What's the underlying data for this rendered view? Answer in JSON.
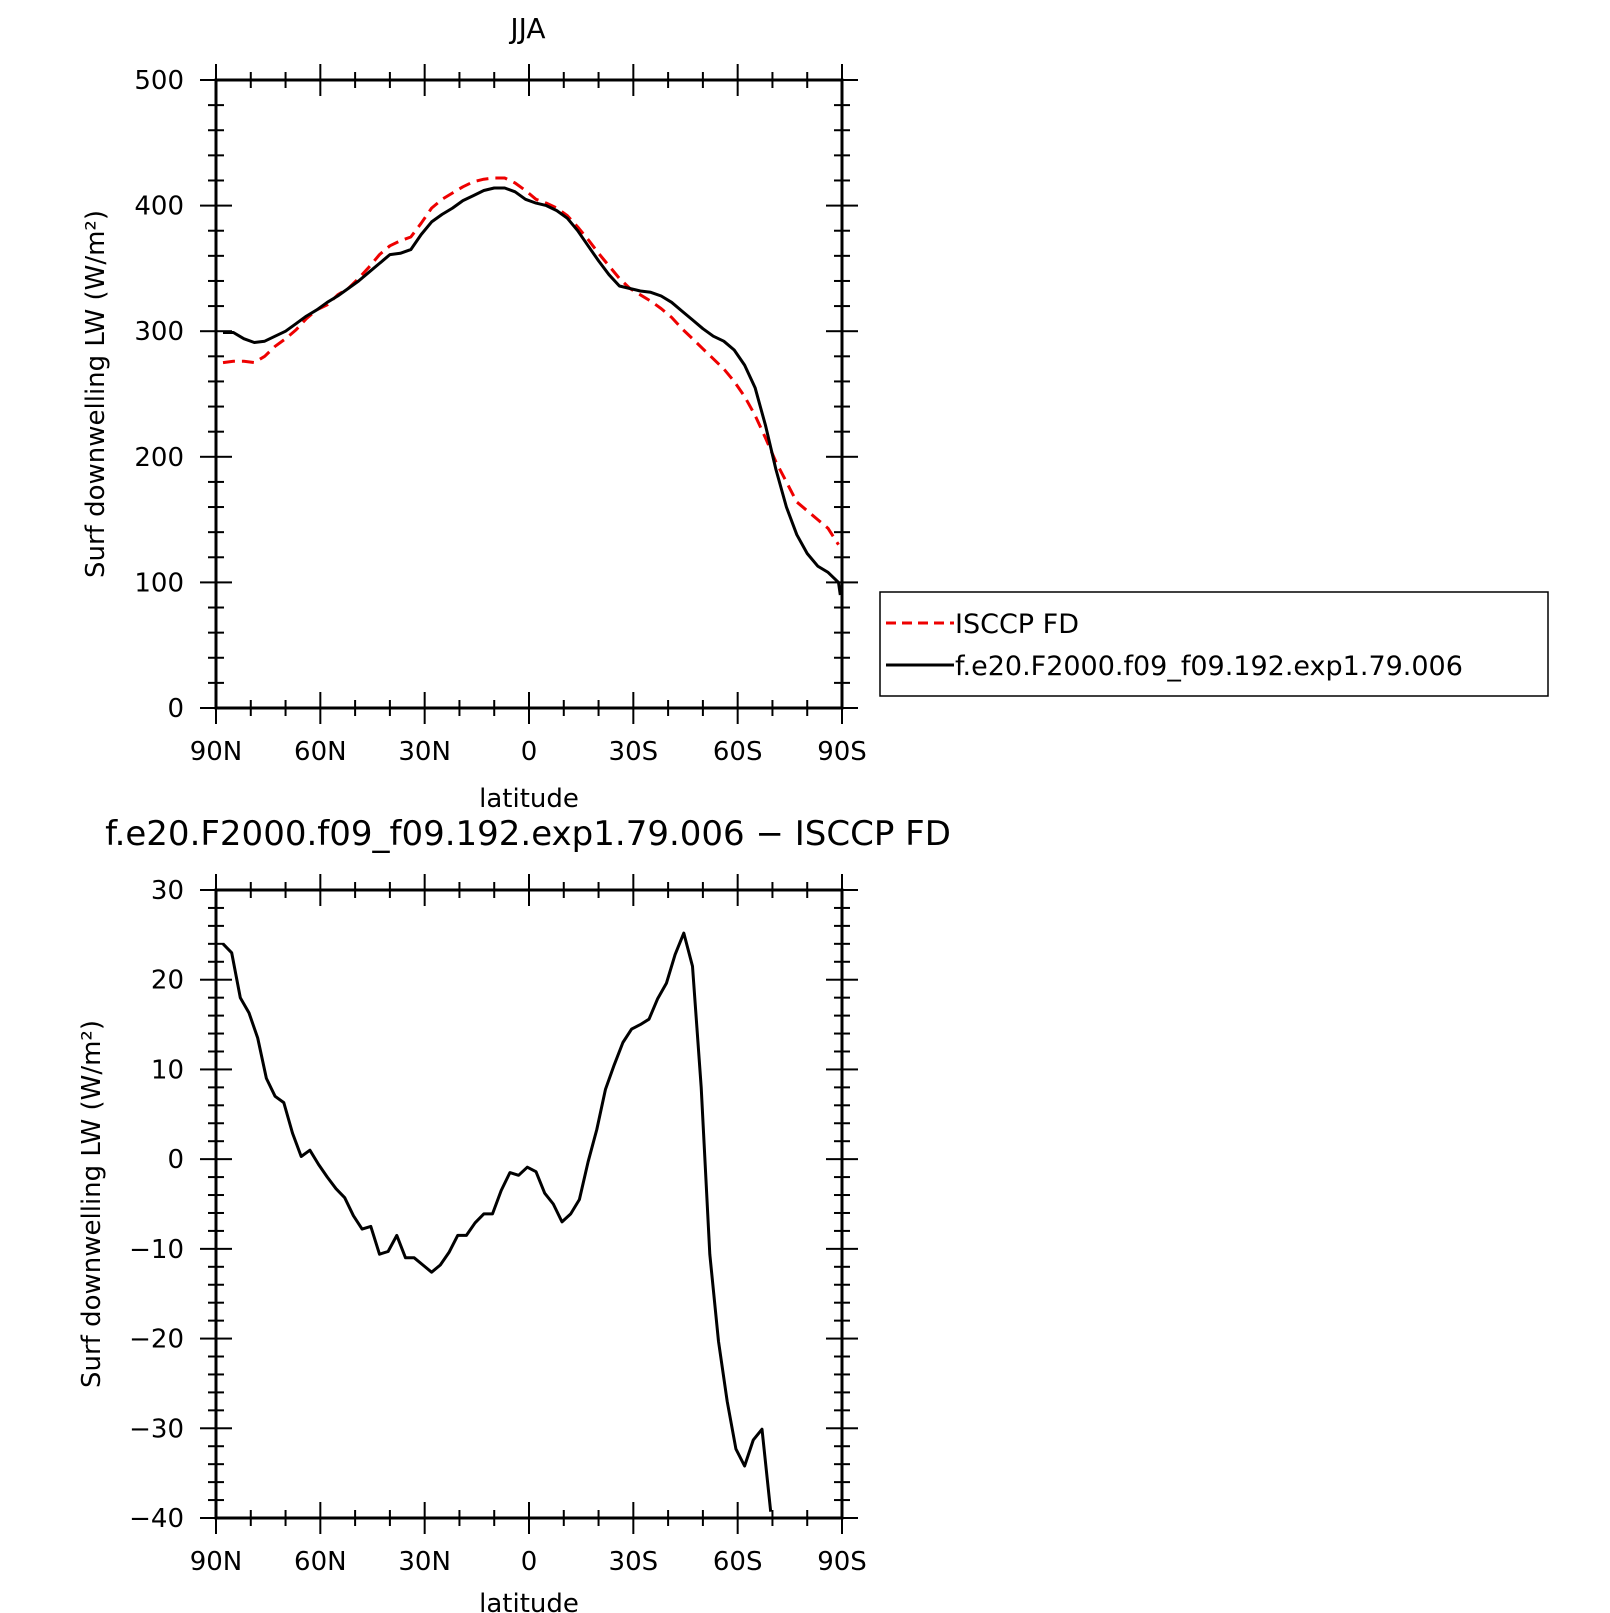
{
  "chart_data": [
    {
      "type": "line",
      "title": "JJA",
      "xlabel": "latitude",
      "ylabel": "Surf downwelling LW (W/m²)",
      "xlim": [
        90,
        -90
      ],
      "ylim": [
        0,
        500
      ],
      "xticks": [
        {
          "value": 90,
          "label": "90N"
        },
        {
          "value": 60,
          "label": "60N"
        },
        {
          "value": 30,
          "label": "30N"
        },
        {
          "value": 0,
          "label": "0"
        },
        {
          "value": -30,
          "label": "30S"
        },
        {
          "value": -60,
          "label": "60S"
        },
        {
          "value": -90,
          "label": "90S"
        }
      ],
      "yticks": [
        {
          "value": 0,
          "label": "0"
        },
        {
          "value": 100,
          "label": "100"
        },
        {
          "value": 200,
          "label": "200"
        },
        {
          "value": 300,
          "label": "300"
        },
        {
          "value": 400,
          "label": "400"
        },
        {
          "value": 500,
          "label": "500"
        }
      ],
      "grid": false,
      "legend": {
        "placement": "outside-right",
        "entries": [
          {
            "label": "ISCCP FD",
            "color": "#ee0000",
            "style": "dashed"
          },
          {
            "label": "f.e20.F2000.f09_f09.192.exp1.79.006",
            "color": "#000000",
            "style": "solid"
          }
        ]
      },
      "series": [
        {
          "name": "ISCCP FD",
          "color": "#ee0000",
          "dash": true,
          "points": [
            [
              88,
              275
            ],
            [
              85,
              276
            ],
            [
              82,
              276
            ],
            [
              79,
              275
            ],
            [
              76,
              280
            ],
            [
              73,
              288
            ],
            [
              70,
              294
            ],
            [
              67,
              301
            ],
            [
              64,
              310
            ],
            [
              61,
              317
            ],
            [
              58,
              321
            ],
            [
              55,
              329
            ],
            [
              52,
              334
            ],
            [
              49,
              342
            ],
            [
              46,
              351
            ],
            [
              43,
              361
            ],
            [
              40,
              368
            ],
            [
              37,
              372
            ],
            [
              34,
              375
            ],
            [
              31,
              386
            ],
            [
              28,
              398
            ],
            [
              25,
              405
            ],
            [
              22,
              410
            ],
            [
              19,
              415
            ],
            [
              16,
              419
            ],
            [
              13,
              421
            ],
            [
              10,
              422
            ],
            [
              7,
              422
            ],
            [
              4,
              418
            ],
            [
              1,
              412
            ],
            [
              -2,
              405
            ],
            [
              -5,
              402
            ],
            [
              -8,
              398
            ],
            [
              -11,
              392
            ],
            [
              -14,
              383
            ],
            [
              -17,
              373
            ],
            [
              -20,
              362
            ],
            [
              -23,
              352
            ],
            [
              -26,
              342
            ],
            [
              -29,
              334
            ],
            [
              -32,
              329
            ],
            [
              -35,
              324
            ],
            [
              -38,
              318
            ],
            [
              -41,
              311
            ],
            [
              -44,
              302
            ],
            [
              -47,
              294
            ],
            [
              -50,
              286
            ],
            [
              -53,
              278
            ],
            [
              -56,
              270
            ],
            [
              -59,
              260
            ],
            [
              -62,
              248
            ],
            [
              -65,
              233
            ],
            [
              -68,
              215
            ],
            [
              -71,
              196
            ],
            [
              -74,
              180
            ],
            [
              -77,
              164
            ],
            [
              -80,
              157
            ],
            [
              -83,
              150
            ],
            [
              -86,
              143
            ],
            [
              -89,
              130
            ]
          ]
        },
        {
          "name": "f.e20.F2000.f09_f09.192.exp1.79.006",
          "color": "#000000",
          "dash": false,
          "points": [
            [
              88,
              299
            ],
            [
              85,
              299
            ],
            [
              82,
              294
            ],
            [
              79,
              291
            ],
            [
              76,
              292
            ],
            [
              73,
              296
            ],
            [
              70,
              300
            ],
            [
              67,
              306
            ],
            [
              64,
              312
            ],
            [
              61,
              317
            ],
            [
              58,
              323
            ],
            [
              55,
              328
            ],
            [
              52,
              334
            ],
            [
              49,
              340
            ],
            [
              46,
              347
            ],
            [
              43,
              354
            ],
            [
              40,
              361
            ],
            [
              37,
              362
            ],
            [
              34,
              365
            ],
            [
              31,
              377
            ],
            [
              28,
              387
            ],
            [
              25,
              393
            ],
            [
              22,
              398
            ],
            [
              19,
              404
            ],
            [
              16,
              408
            ],
            [
              13,
              412
            ],
            [
              10,
              414
            ],
            [
              7,
              414
            ],
            [
              4,
              411
            ],
            [
              1,
              405
            ],
            [
              -2,
              402
            ],
            [
              -5,
              400
            ],
            [
              -8,
              396
            ],
            [
              -11,
              390
            ],
            [
              -14,
              380
            ],
            [
              -17,
              368
            ],
            [
              -20,
              356
            ],
            [
              -23,
              345
            ],
            [
              -26,
              336
            ],
            [
              -29,
              334
            ],
            [
              -32,
              332
            ],
            [
              -35,
              331
            ],
            [
              -38,
              328
            ],
            [
              -41,
              323
            ],
            [
              -44,
              316
            ],
            [
              -47,
              309
            ],
            [
              -50,
              302
            ],
            [
              -53,
              296
            ],
            [
              -56,
              292
            ],
            [
              -59,
              285
            ],
            [
              -62,
              273
            ],
            [
              -65,
              255
            ],
            [
              -68,
              225
            ],
            [
              -71,
              190
            ],
            [
              -74,
              160
            ],
            [
              -77,
              138
            ],
            [
              -80,
              123
            ],
            [
              -83,
              113
            ],
            [
              -86,
              108
            ],
            [
              -89,
              100
            ],
            [
              -89.5,
              90
            ]
          ]
        }
      ]
    },
    {
      "type": "line",
      "title": "f.e20.F2000.f09_f09.192.exp1.79.006 − ISCCP FD",
      "xlabel": "latitude",
      "ylabel": "Surf downwelling LW (W/m²)",
      "xlim": [
        90,
        -90
      ],
      "ylim": [
        -40,
        30
      ],
      "xticks": [
        {
          "value": 90,
          "label": "90N"
        },
        {
          "value": 60,
          "label": "60N"
        },
        {
          "value": 30,
          "label": "30N"
        },
        {
          "value": 0,
          "label": "0"
        },
        {
          "value": -30,
          "label": "30S"
        },
        {
          "value": -60,
          "label": "60S"
        },
        {
          "value": -90,
          "label": "90S"
        }
      ],
      "yticks": [
        {
          "value": -40,
          "label": "−40"
        },
        {
          "value": -30,
          "label": "−30"
        },
        {
          "value": -20,
          "label": "−20"
        },
        {
          "value": -10,
          "label": "−10"
        },
        {
          "value": 0,
          "label": "0"
        },
        {
          "value": 10,
          "label": "10"
        },
        {
          "value": 20,
          "label": "20"
        },
        {
          "value": 30,
          "label": "30"
        }
      ],
      "grid": false,
      "series": [
        {
          "color": "#000000",
          "dash": false,
          "points": [
            [
              88,
              24
            ],
            [
              85.5,
              23
            ],
            [
              83,
              18
            ],
            [
              80.5,
              16.3
            ],
            [
              78,
              13.5
            ],
            [
              75.5,
              9
            ],
            [
              73,
              7
            ],
            [
              70.5,
              6.3
            ],
            [
              68,
              2.9
            ],
            [
              65.5,
              0.3
            ],
            [
              63,
              1
            ],
            [
              60.5,
              -0.6
            ],
            [
              58,
              -2
            ],
            [
              55.5,
              -3.3
            ],
            [
              53,
              -4.3
            ],
            [
              50.5,
              -6.3
            ],
            [
              48,
              -7.8
            ],
            [
              45.5,
              -7.5
            ],
            [
              43,
              -10.6
            ],
            [
              40.5,
              -10.3
            ],
            [
              38,
              -8.5
            ],
            [
              35.5,
              -11
            ],
            [
              33,
              -11
            ],
            [
              30.5,
              -11.8
            ],
            [
              28,
              -12.6
            ],
            [
              25.5,
              -11.8
            ],
            [
              23,
              -10.4
            ],
            [
              20.5,
              -8.5
            ],
            [
              18,
              -8.5
            ],
            [
              15.5,
              -7.1
            ],
            [
              13,
              -6.1
            ],
            [
              10.5,
              -6.1
            ],
            [
              8,
              -3.5
            ],
            [
              5.5,
              -1.5
            ],
            [
              3,
              -1.8
            ],
            [
              0.5,
              -0.9
            ],
            [
              -2,
              -1.4
            ],
            [
              -4.5,
              -3.8
            ],
            [
              -7,
              -5
            ],
            [
              -9.5,
              -7
            ],
            [
              -12,
              -6.1
            ],
            [
              -14.5,
              -4.5
            ],
            [
              -17,
              -0.3
            ],
            [
              -19.5,
              3.3
            ],
            [
              -22,
              7.8
            ],
            [
              -24.5,
              10.5
            ],
            [
              -27,
              13
            ],
            [
              -29.5,
              14.5
            ],
            [
              -32,
              15
            ],
            [
              -34.5,
              15.6
            ],
            [
              -37,
              17.9
            ],
            [
              -39.5,
              19.6
            ],
            [
              -42,
              22.8
            ],
            [
              -44.5,
              25.2
            ],
            [
              -47,
              21.5
            ],
            [
              -49.5,
              8
            ],
            [
              -52,
              -10.6
            ],
            [
              -54.5,
              -20.3
            ],
            [
              -57,
              -27
            ],
            [
              -59.5,
              -32.3
            ],
            [
              -62,
              -34.2
            ],
            [
              -64.5,
              -31.3
            ],
            [
              -67,
              -30.1
            ],
            [
              -69.5,
              -39.3
            ]
          ]
        }
      ]
    }
  ]
}
